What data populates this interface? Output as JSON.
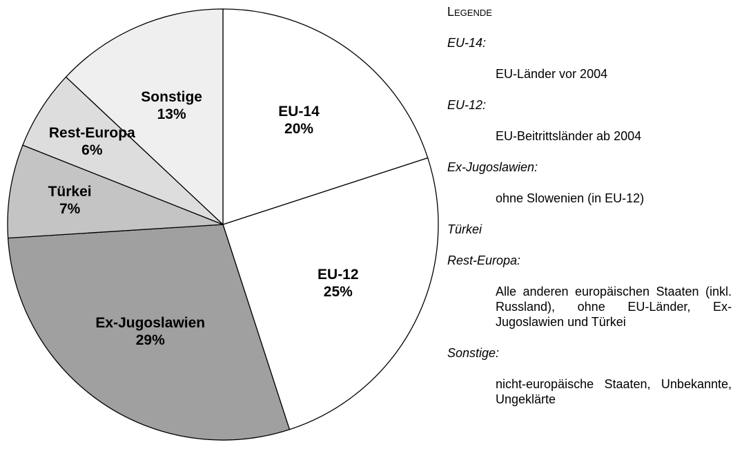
{
  "chart_data": {
    "type": "pie",
    "categories": [
      "EU-14",
      "EU-12",
      "Ex-Jugoslawien",
      "Türkei",
      "Rest-Europa",
      "Sonstige"
    ],
    "values": [
      20,
      25,
      29,
      7,
      6,
      13
    ],
    "value_labels": [
      "20%",
      "25%",
      "29%",
      "7%",
      "6%",
      "13%"
    ],
    "colors": [
      "#ffffff",
      "#ffffff",
      "#a0a0a0",
      "#c4c4c4",
      "#dddddd",
      "#efefef"
    ]
  },
  "legend": {
    "title": "Legende",
    "entries": [
      {
        "term": "EU-14:",
        "description": "EU-Länder vor 2004"
      },
      {
        "term": "EU-12:",
        "description": "EU-Beitrittsländer ab 2004"
      },
      {
        "term": "Ex-Jugoslawien:",
        "description": "ohne Slowenien (in EU-12)"
      },
      {
        "term": "Türkei"
      },
      {
        "term": "Rest-Europa:",
        "description": "Alle anderen europäischen Staaten (inkl. Russland), ohne EU-Länder, Ex-Jugoslawien und Türkei"
      },
      {
        "term": "Sonstige:",
        "description": "nicht-europäische Staaten, Unbekannte, Ungeklärte"
      }
    ]
  }
}
